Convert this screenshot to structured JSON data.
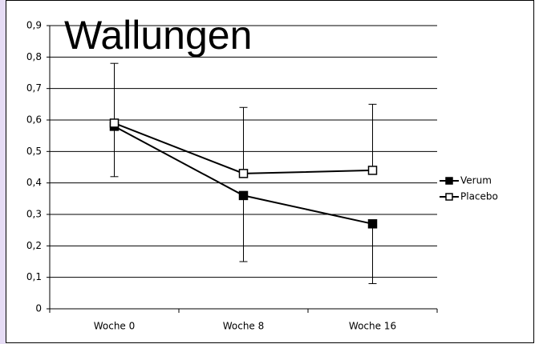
{
  "chart_data": {
    "type": "line",
    "title": "Wallungen",
    "categories": [
      "Woche 0",
      "Woche 8",
      "Woche 16"
    ],
    "series": [
      {
        "name": "Verum",
        "color": "#000000",
        "marker": "filled-square",
        "values": [
          0.58,
          0.36,
          0.27
        ],
        "errors": [
          0.16,
          0.21,
          0.19
        ],
        "error_direction": "minus"
      },
      {
        "name": "Placebo",
        "color": "#000000",
        "marker": "open-square",
        "values": [
          0.59,
          0.43,
          0.44
        ],
        "errors": [
          0.19,
          0.21,
          0.21
        ],
        "error_direction": "plus"
      }
    ],
    "ylim": [
      0,
      0.9
    ],
    "yticks": [
      0,
      {
        "value": 0.1,
        "label": "0,1"
      },
      {
        "value": 0.2,
        "label": "0,2"
      },
      {
        "value": 0.3,
        "label": "0,3"
      },
      {
        "value": 0.4,
        "label": "0,4"
      },
      {
        "value": 0.5,
        "label": "0,5"
      },
      {
        "value": 0.6,
        "label": "0,6"
      },
      {
        "value": 0.7,
        "label": "0,7"
      },
      {
        "value": 0.8,
        "label": "0,8"
      },
      {
        "value": 0.9,
        "label": "0,9"
      }
    ],
    "grid": true,
    "legend": "right"
  }
}
